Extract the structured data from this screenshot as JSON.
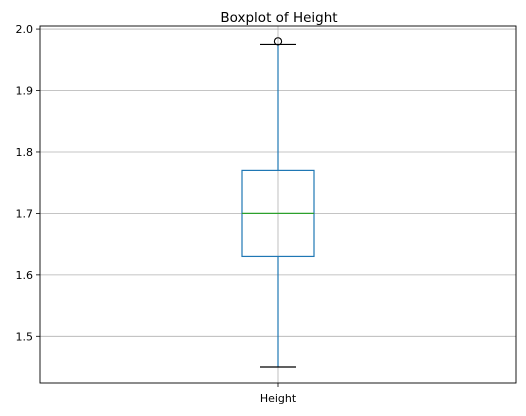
{
  "chart_data": {
    "type": "box",
    "title": "Boxplot of Height",
    "xlabel": "",
    "ylabel": "",
    "categories": [
      "Height"
    ],
    "ylim": [
      1.424,
      2.005
    ],
    "yticks": [
      1.5,
      1.6,
      1.7,
      1.8,
      1.9,
      2.0
    ],
    "ytick_labels": [
      "1.5",
      "1.6",
      "1.7",
      "1.8",
      "1.9",
      "2.0"
    ],
    "grid": true,
    "boxes": [
      {
        "category": "Height",
        "whisker_low": 1.45,
        "q1": 1.63,
        "median": 1.7,
        "q3": 1.77,
        "whisker_high": 1.975,
        "outliers": [
          1.98
        ]
      }
    ],
    "colors": {
      "box": "#1f77b4",
      "median": "#2ca02c",
      "whisker": "#1f77b4",
      "cap": "#000000",
      "grid": "#b0b0b0",
      "outlier_edge": "#000000"
    }
  }
}
